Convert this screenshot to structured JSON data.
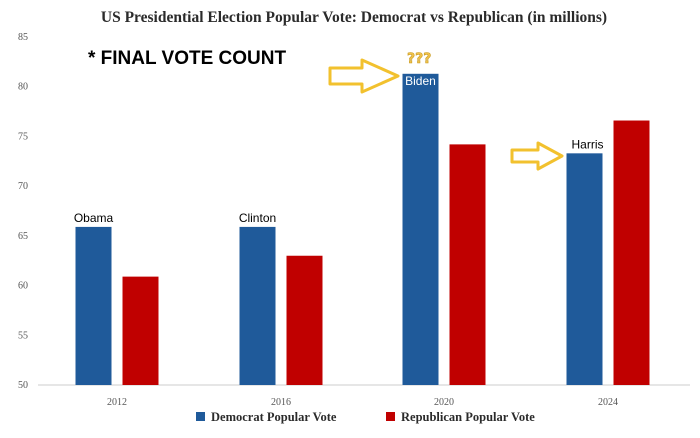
{
  "chart_data": {
    "type": "bar",
    "title": "US Presidential Election Popular Vote: Democrat vs Republican (in millions)",
    "categories": [
      "2012",
      "2016",
      "2020",
      "2024"
    ],
    "series": [
      {
        "name": "Democrat Popular Vote",
        "color": "#1f5a9a",
        "values": [
          65.9,
          65.9,
          81.3,
          73.3
        ]
      },
      {
        "name": "Republican Popular Vote",
        "color": "#c00000",
        "values": [
          60.9,
          63.0,
          74.2,
          76.6
        ]
      }
    ],
    "ylim": [
      50,
      85
    ],
    "yticks": [
      "50",
      "55",
      "60",
      "65",
      "70",
      "75",
      "80",
      "85"
    ],
    "legend_position": "bottom",
    "grid": false,
    "annotations": {
      "overlay_text": "* FINAL VOTE COUNT",
      "candidate_labels": [
        "Obama",
        "Clinton",
        "Biden",
        "Harris"
      ],
      "question_marks": "???",
      "arrow_color": "#f2c12e"
    }
  }
}
